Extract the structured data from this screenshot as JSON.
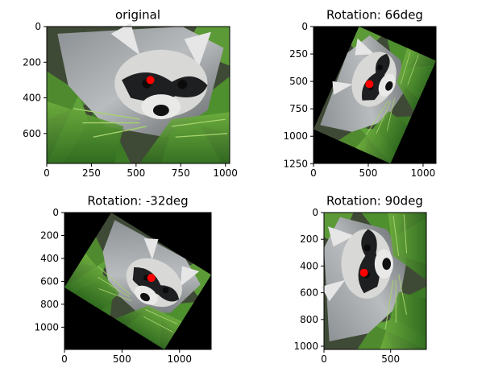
{
  "figure": {
    "background": "#ffffff",
    "marker_color": "#ff0000"
  },
  "chart_data": [
    {
      "type": "image",
      "title": "original",
      "content": "raccoon photo",
      "rotation_deg": 0,
      "image_extent": {
        "width": 1024,
        "height": 768
      },
      "xlim": [
        0,
        1024
      ],
      "ylim": [
        768,
        0
      ],
      "xticks": [
        0,
        250,
        500,
        750,
        1000
      ],
      "yticks": [
        0,
        200,
        400,
        600
      ],
      "marker": {
        "x": 580,
        "y": 300
      }
    },
    {
      "type": "image",
      "title": "Rotation: 66deg",
      "content": "raccoon photo rotated 66 degrees on black background",
      "rotation_deg": 66,
      "image_extent": {
        "width": 1118,
        "height": 1248
      },
      "xlim": [
        0,
        1118
      ],
      "ylim": [
        1248,
        0
      ],
      "xticks": [
        0,
        500,
        1000
      ],
      "yticks": [
        0,
        250,
        500,
        750,
        1000,
        1250
      ],
      "marker": {
        "x": 510,
        "y": 525
      }
    },
    {
      "type": "image",
      "title": "Rotation: -32deg",
      "content": "raccoon photo rotated -32 degrees on black background",
      "rotation_deg": -32,
      "image_extent": {
        "width": 1275,
        "height": 1194
      },
      "xlim": [
        0,
        1275
      ],
      "ylim": [
        1194,
        0
      ],
      "xticks": [
        0,
        500,
        1000
      ],
      "yticks": [
        0,
        200,
        400,
        600,
        800,
        1000
      ],
      "marker": {
        "x": 755,
        "y": 570
      }
    },
    {
      "type": "image",
      "title": "Rotation: 90deg",
      "content": "raccoon photo rotated 90 degrees",
      "rotation_deg": 90,
      "image_extent": {
        "width": 768,
        "height": 1024
      },
      "xlim": [
        0,
        768
      ],
      "ylim": [
        1024,
        0
      ],
      "xticks": [
        0,
        500
      ],
      "yticks": [
        0,
        200,
        400,
        600,
        800,
        1000
      ],
      "marker": {
        "x": 300,
        "y": 450
      }
    }
  ]
}
